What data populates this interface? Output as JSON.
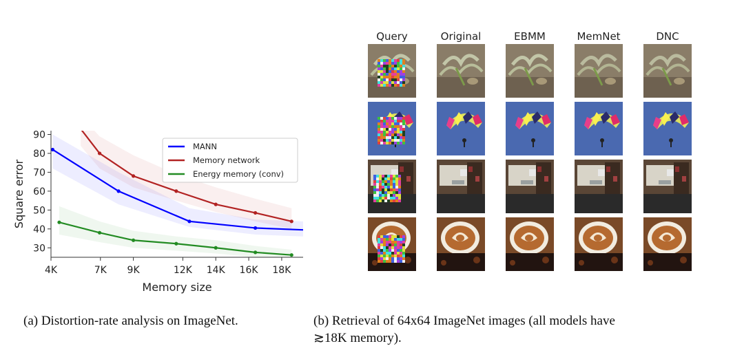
{
  "chart_data": {
    "type": "line",
    "xlabel": "Memory size",
    "ylabel": "Square error",
    "xlim": [
      4000,
      19300
    ],
    "ylim": [
      25,
      92
    ],
    "xticks": [
      4000,
      7000,
      9000,
      12000,
      14000,
      16000,
      18000
    ],
    "xtick_labels": [
      "4K",
      "7K",
      "9K",
      "12K",
      "14K",
      "16K",
      "18K"
    ],
    "yticks": [
      30,
      40,
      50,
      60,
      70,
      80,
      90
    ],
    "ytick_labels": [
      "30",
      "40",
      "50",
      "60",
      "70",
      "80",
      "90"
    ],
    "grid": false,
    "legend_position": "top-right",
    "series": [
      {
        "name": "MANN",
        "color": "#0000ff",
        "x": [
          4100,
          8100,
          12400,
          16400,
          19300
        ],
        "y": [
          82,
          60,
          44,
          40.5,
          39.5
        ],
        "marker_count": 4,
        "band_lo": [
          72,
          53,
          41,
          37,
          36
        ],
        "band_hi": [
          90,
          70,
          51,
          45,
          44
        ]
      },
      {
        "name": "Memory network",
        "color": "#b22222",
        "x": [
          5800,
          6950,
          9000,
          11600,
          14000,
          16400,
          18600
        ],
        "y": [
          93,
          80,
          68,
          60,
          53,
          48.5,
          44
        ],
        "marker_count": 7,
        "markers_start": 1,
        "band_lo": [
          84,
          72,
          62,
          55,
          49,
          44,
          40
        ],
        "band_hi": [
          100,
          89,
          79,
          69,
          62,
          56,
          51
        ]
      },
      {
        "name": "Energy memory (conv)",
        "color": "#228b22",
        "x": [
          4500,
          6950,
          9000,
          11600,
          14000,
          16400,
          18600
        ],
        "y": [
          43.5,
          38,
          34,
          32.2,
          30,
          27.6,
          26.2
        ],
        "marker_count": 7,
        "band_lo": [
          37,
          33,
          30,
          28.5,
          27,
          25,
          24
        ],
        "band_hi": [
          52,
          44,
          39,
          36,
          34,
          31,
          29
        ]
      }
    ]
  },
  "gallery": {
    "headers": [
      "Query",
      "Original",
      "EBMM",
      "MemNet",
      "DNC"
    ],
    "rows": [
      {
        "name": "succulent",
        "query_has_noise_patch": true
      },
      {
        "name": "parachute",
        "query_has_noise_patch": true
      },
      {
        "name": "room",
        "query_has_noise_patch": true
      },
      {
        "name": "latte",
        "query_has_noise_patch": true
      }
    ]
  },
  "captions": {
    "a": "(a) Distortion-rate analysis on ImageNet.",
    "b": "(b) Retrieval of 64x64 ImageNet images (all models have",
    "b2": "≳18K memory)."
  }
}
